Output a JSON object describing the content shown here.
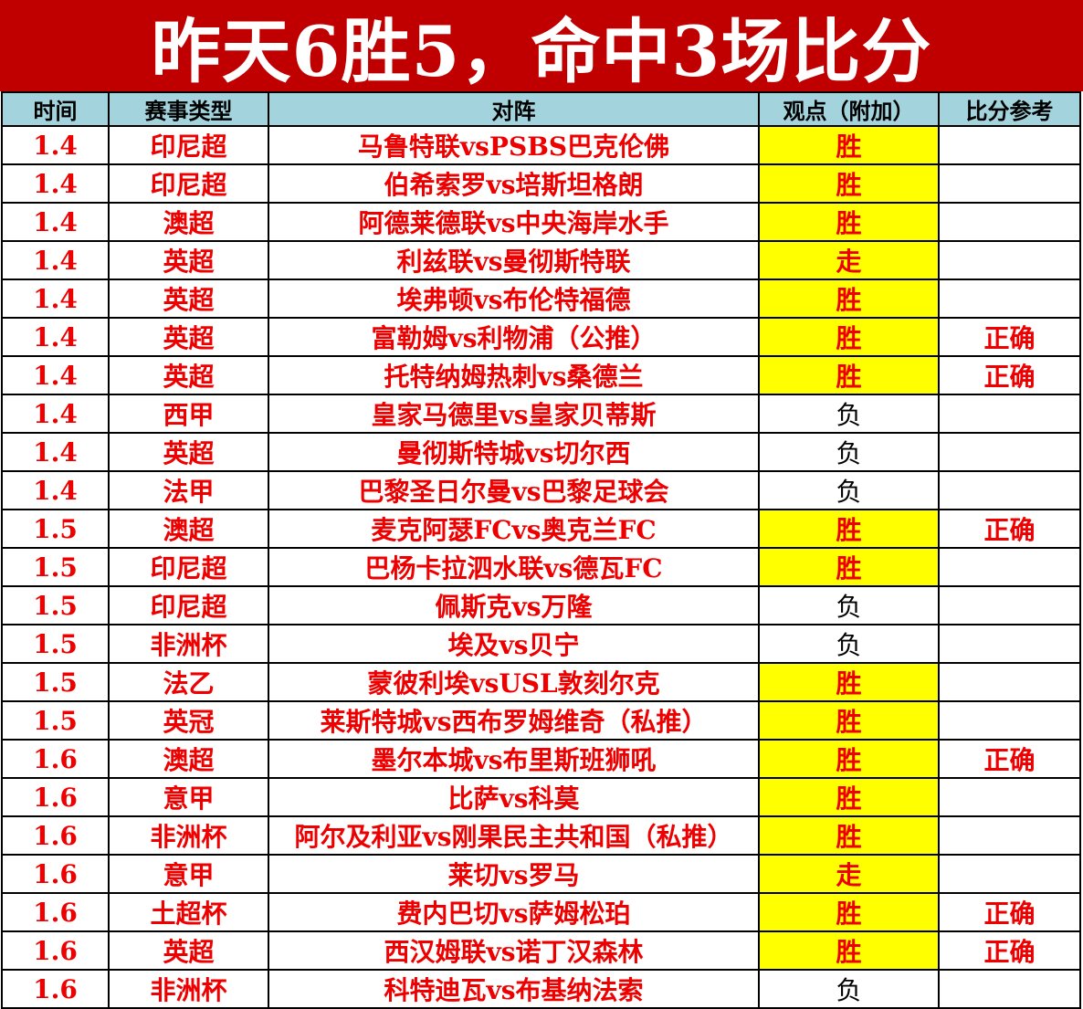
{
  "title": "昨天6胜5，命中3场比分",
  "colors": {
    "banner_bg": "#c00000",
    "banner_text": "#ffffff",
    "header_bg": "#a3d4dd",
    "highlight_bg": "#ffff00",
    "red_text": "#ee0000",
    "black_text": "#000000"
  },
  "chart_data": {
    "type": "table",
    "title": "昨天6胜5，命中3场比分",
    "columns": [
      "时间",
      "赛事类型",
      "对阵",
      "观点（附加）",
      "比分参考"
    ],
    "rows": [
      {
        "date": "1.4",
        "league": "印尼超",
        "match": "马鲁特联vsPSBS巴克伦佛",
        "pick": "胜",
        "pick_highlight": true,
        "result": ""
      },
      {
        "date": "1.4",
        "league": "印尼超",
        "match": "伯希索罗vs培斯坦格朗",
        "pick": "胜",
        "pick_highlight": true,
        "result": ""
      },
      {
        "date": "1.4",
        "league": "澳超",
        "match": "阿德莱德联vs中央海岸水手",
        "pick": "胜",
        "pick_highlight": true,
        "result": ""
      },
      {
        "date": "1.4",
        "league": "英超",
        "match": "利兹联vs曼彻斯特联",
        "pick": "走",
        "pick_highlight": true,
        "result": ""
      },
      {
        "date": "1.4",
        "league": "英超",
        "match": "埃弗顿vs布伦特福德",
        "pick": "胜",
        "pick_highlight": true,
        "result": ""
      },
      {
        "date": "1.4",
        "league": "英超",
        "match": "富勒姆vs利物浦（公推）",
        "pick": "胜",
        "pick_highlight": true,
        "result": "正确"
      },
      {
        "date": "1.4",
        "league": "英超",
        "match": "托特纳姆热刺vs桑德兰",
        "pick": "胜",
        "pick_highlight": true,
        "result": "正确"
      },
      {
        "date": "1.4",
        "league": "西甲",
        "match": "皇家马德里vs皇家贝蒂斯",
        "pick": "负",
        "pick_highlight": false,
        "result": ""
      },
      {
        "date": "1.4",
        "league": "英超",
        "match": "曼彻斯特城vs切尔西",
        "pick": "负",
        "pick_highlight": false,
        "result": ""
      },
      {
        "date": "1.4",
        "league": "法甲",
        "match": "巴黎圣日尔曼vs巴黎足球会",
        "pick": "负",
        "pick_highlight": false,
        "result": ""
      },
      {
        "date": "1.5",
        "league": "澳超",
        "match": "麦克阿瑟FCvs奥克兰FC",
        "pick": "胜",
        "pick_highlight": true,
        "result": "正确"
      },
      {
        "date": "1.5",
        "league": "印尼超",
        "match": "巴杨卡拉泗水联vs德瓦FC",
        "pick": "胜",
        "pick_highlight": true,
        "result": ""
      },
      {
        "date": "1.5",
        "league": "印尼超",
        "match": "佩斯克vs万隆",
        "pick": "负",
        "pick_highlight": false,
        "result": ""
      },
      {
        "date": "1.5",
        "league": "非洲杯",
        "match": "埃及vs贝宁",
        "pick": "负",
        "pick_highlight": false,
        "result": ""
      },
      {
        "date": "1.5",
        "league": "法乙",
        "match": "蒙彼利埃vsUSL敦刻尔克",
        "pick": "胜",
        "pick_highlight": true,
        "result": ""
      },
      {
        "date": "1.5",
        "league": "英冠",
        "match": "莱斯特城vs西布罗姆维奇（私推）",
        "pick": "胜",
        "pick_highlight": true,
        "result": ""
      },
      {
        "date": "1.6",
        "league": "澳超",
        "match": "墨尔本城vs布里斯班狮吼",
        "pick": "胜",
        "pick_highlight": true,
        "result": "正确"
      },
      {
        "date": "1.6",
        "league": "意甲",
        "match": "比萨vs科莫",
        "pick": "胜",
        "pick_highlight": true,
        "result": ""
      },
      {
        "date": "1.6",
        "league": "非洲杯",
        "match": "阿尔及利亚vs刚果民主共和国（私推）",
        "pick": "胜",
        "pick_highlight": true,
        "result": ""
      },
      {
        "date": "1.6",
        "league": "意甲",
        "match": "莱切vs罗马",
        "pick": "走",
        "pick_highlight": true,
        "result": ""
      },
      {
        "date": "1.6",
        "league": "土超杯",
        "match": "费内巴切vs萨姆松珀",
        "pick": "胜",
        "pick_highlight": true,
        "result": "正确"
      },
      {
        "date": "1.6",
        "league": "英超",
        "match": "西汉姆联vs诺丁汉森林",
        "pick": "胜",
        "pick_highlight": true,
        "result": "正确"
      },
      {
        "date": "1.6",
        "league": "非洲杯",
        "match": "科特迪瓦vs布基纳法索",
        "pick": "负",
        "pick_highlight": false,
        "result": ""
      }
    ]
  }
}
